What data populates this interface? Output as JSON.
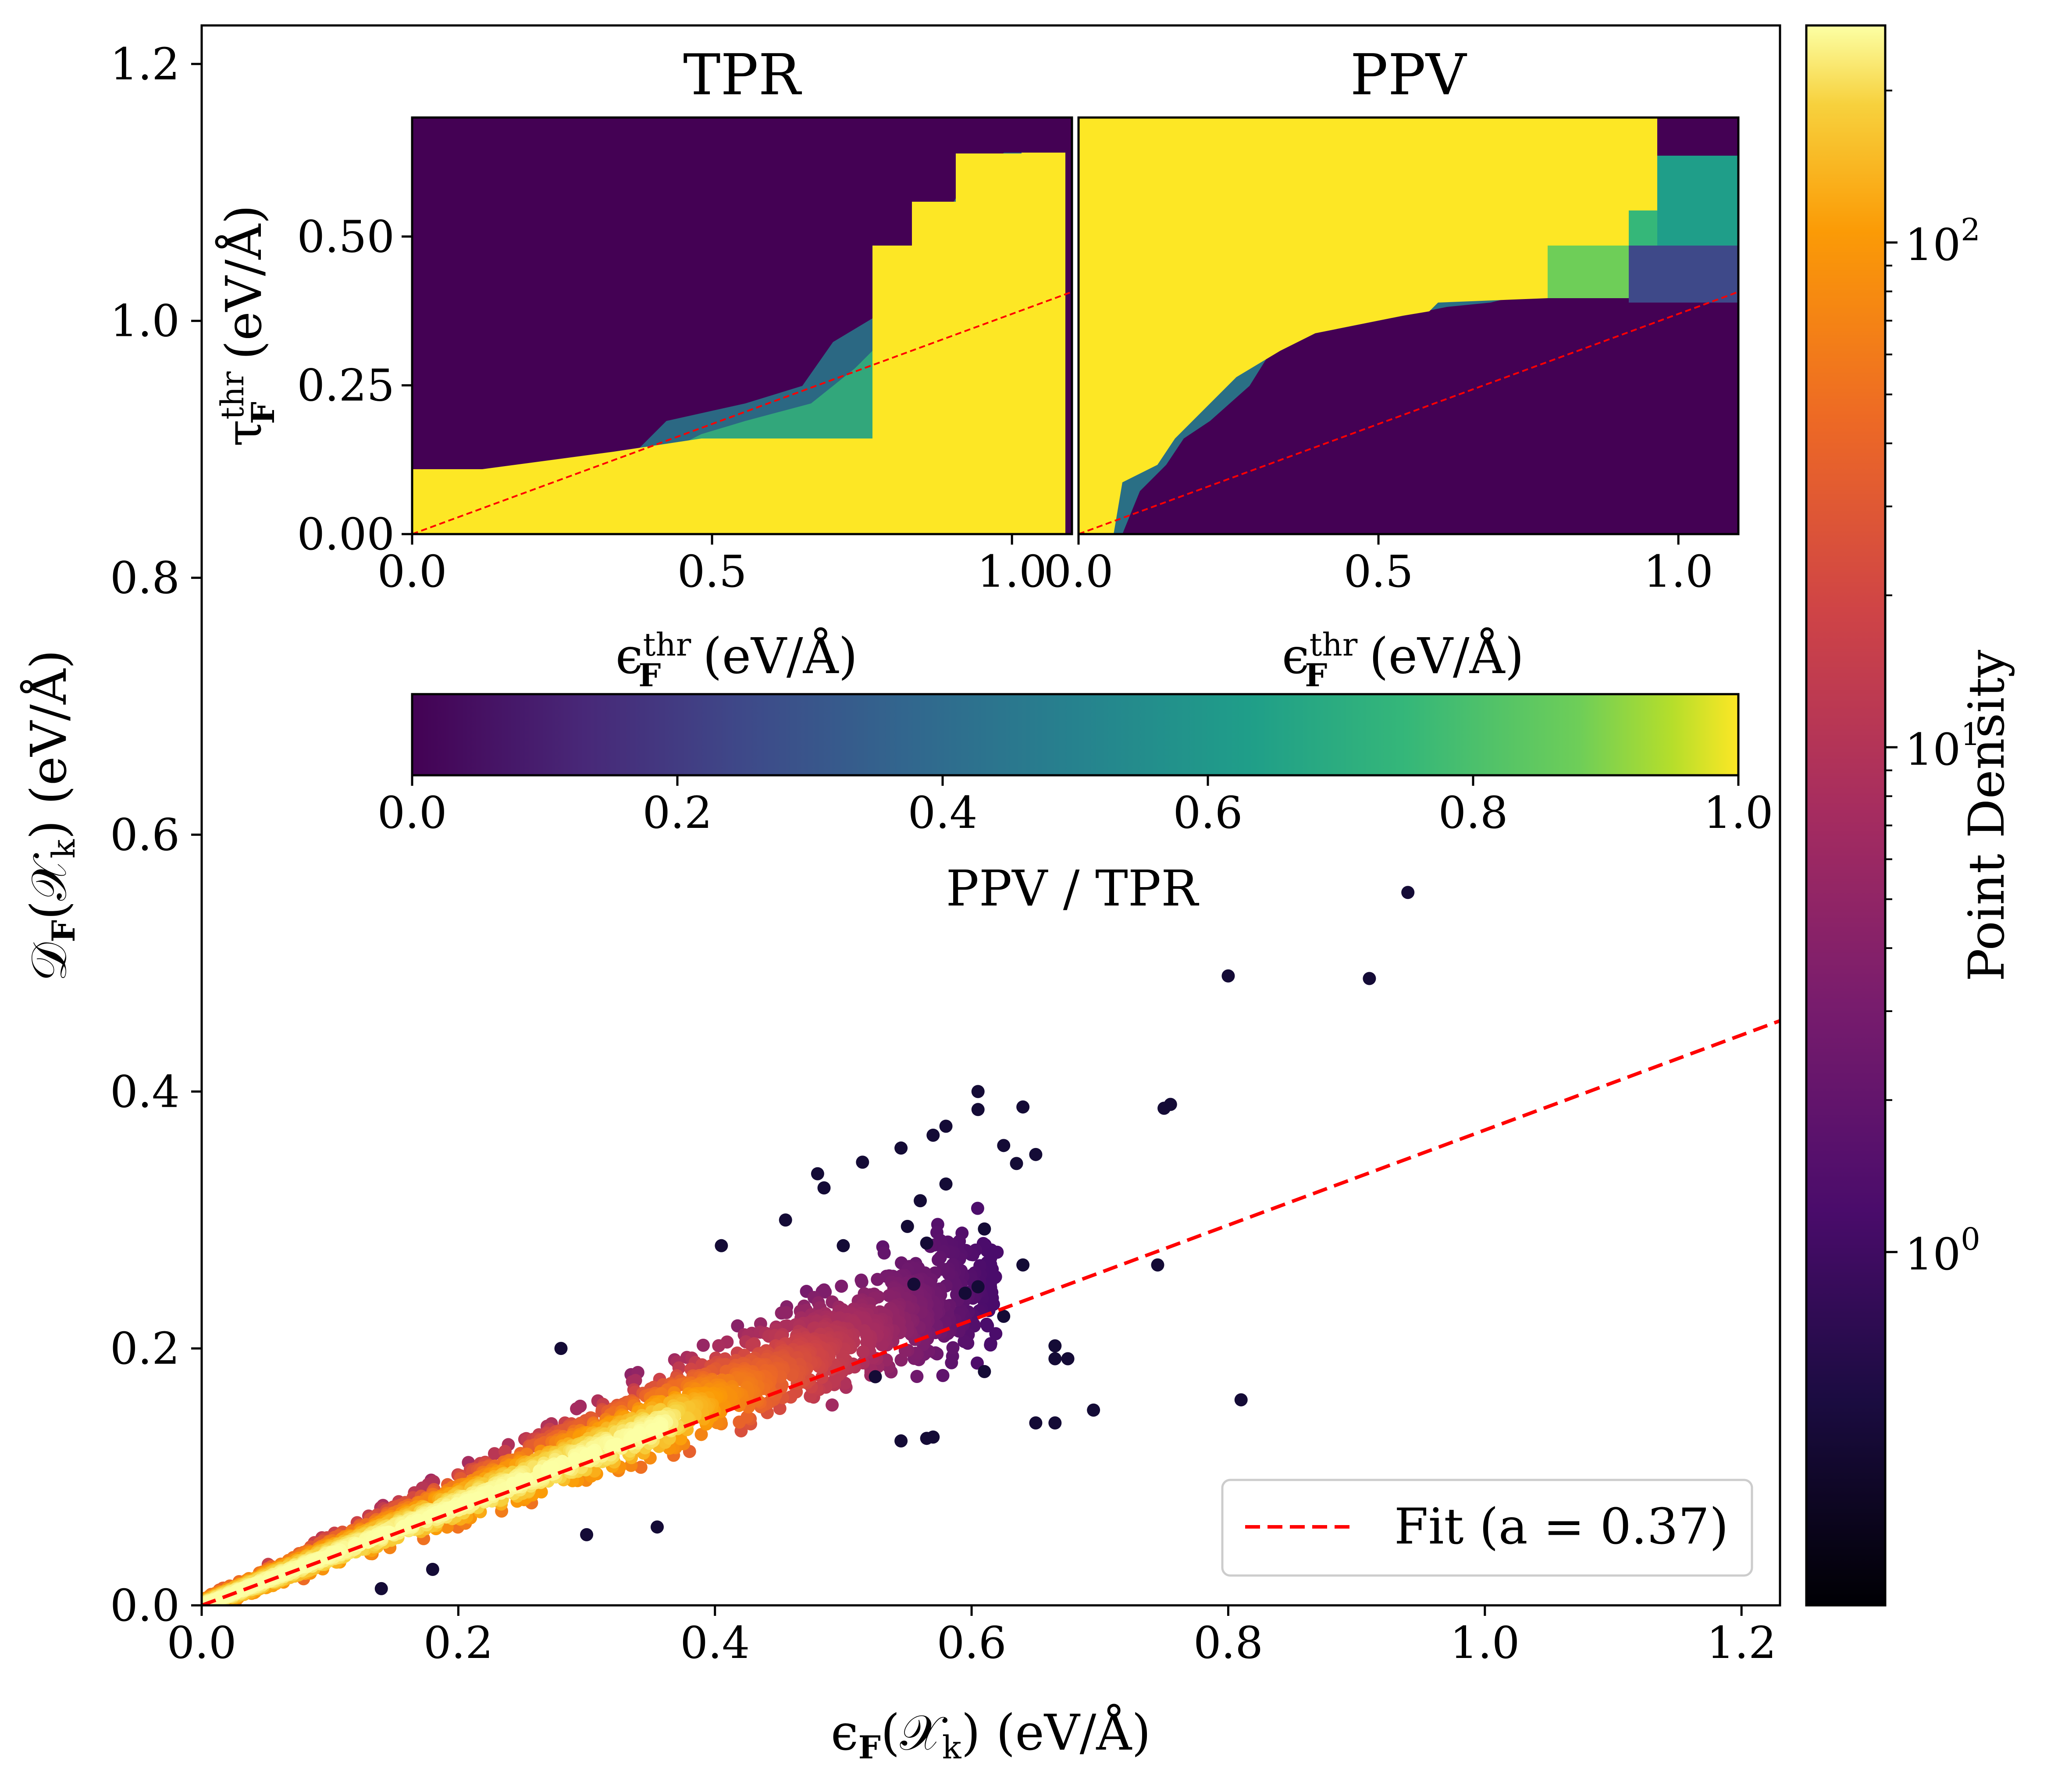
{
  "chart_data": [
    {
      "id": "main",
      "type": "scatter",
      "xlabel": "ϵF(𝒳k) (eV/Å)",
      "ylabel": "𝒟F(𝒳k) (eV/Å)",
      "xlim": [
        0.0,
        1.23
      ],
      "ylim": [
        0.0,
        1.23
      ],
      "xticks": [
        "0.0",
        "0.2",
        "0.4",
        "0.6",
        "0.8",
        "1.0",
        "1.2"
      ],
      "yticks": [
        "0.0",
        "0.2",
        "0.4",
        "0.6",
        "0.8",
        "1.0",
        "1.2"
      ],
      "fit": {
        "slope": 0.37,
        "label": "Fit (a = 0.37)",
        "color": "#ff0000",
        "style": "dashed"
      },
      "legend_position": "lower-right",
      "points_description": "dense cluster along y≈0.37x for x in 0–0.37, sparse outliers up to x≈0.94, colored by point density",
      "outliers": [
        {
          "x": 0.94,
          "y": 0.555
        },
        {
          "x": 0.8,
          "y": 0.49
        },
        {
          "x": 0.91,
          "y": 0.488
        },
        {
          "x": 0.605,
          "y": 0.4
        },
        {
          "x": 0.64,
          "y": 0.388
        },
        {
          "x": 0.605,
          "y": 0.386
        },
        {
          "x": 0.755,
          "y": 0.39
        },
        {
          "x": 0.75,
          "y": 0.387
        },
        {
          "x": 0.58,
          "y": 0.373
        },
        {
          "x": 0.57,
          "y": 0.366
        },
        {
          "x": 0.515,
          "y": 0.345
        },
        {
          "x": 0.48,
          "y": 0.336
        },
        {
          "x": 0.625,
          "y": 0.358
        },
        {
          "x": 0.635,
          "y": 0.344
        },
        {
          "x": 0.65,
          "y": 0.351
        },
        {
          "x": 0.545,
          "y": 0.356
        },
        {
          "x": 0.485,
          "y": 0.325
        },
        {
          "x": 0.58,
          "y": 0.328
        },
        {
          "x": 0.56,
          "y": 0.315
        },
        {
          "x": 0.55,
          "y": 0.295
        },
        {
          "x": 0.455,
          "y": 0.3
        },
        {
          "x": 0.61,
          "y": 0.293
        },
        {
          "x": 0.565,
          "y": 0.282
        },
        {
          "x": 0.5,
          "y": 0.28
        },
        {
          "x": 0.405,
          "y": 0.28
        },
        {
          "x": 0.64,
          "y": 0.265
        },
        {
          "x": 0.745,
          "y": 0.265
        },
        {
          "x": 0.555,
          "y": 0.25
        },
        {
          "x": 0.605,
          "y": 0.248
        },
        {
          "x": 0.595,
          "y": 0.243
        },
        {
          "x": 0.625,
          "y": 0.225
        },
        {
          "x": 0.665,
          "y": 0.202
        },
        {
          "x": 0.665,
          "y": 0.192
        },
        {
          "x": 0.675,
          "y": 0.192
        },
        {
          "x": 0.61,
          "y": 0.182
        },
        {
          "x": 0.525,
          "y": 0.178
        },
        {
          "x": 0.695,
          "y": 0.152
        },
        {
          "x": 0.81,
          "y": 0.16
        },
        {
          "x": 0.65,
          "y": 0.142
        },
        {
          "x": 0.665,
          "y": 0.142
        },
        {
          "x": 0.545,
          "y": 0.128
        },
        {
          "x": 0.565,
          "y": 0.13
        },
        {
          "x": 0.57,
          "y": 0.131
        },
        {
          "x": 0.28,
          "y": 0.2
        },
        {
          "x": 0.3,
          "y": 0.055
        },
        {
          "x": 0.355,
          "y": 0.061
        },
        {
          "x": 0.14,
          "y": 0.013
        },
        {
          "x": 0.18,
          "y": 0.028
        }
      ]
    },
    {
      "id": "inset-tpr",
      "type": "heatmap",
      "title": "TPR",
      "xlabel": "ϵFthr (eV/Å)",
      "ylabel": "τFthr (eV/Å)",
      "xlim": [
        0.0,
        1.1
      ],
      "ylim": [
        0.0,
        0.7
      ],
      "xticks": [
        "0.0",
        "0.5",
        "1.0"
      ],
      "yticks": [
        "0.00",
        "0.25",
        "0.50"
      ],
      "fit_slope": 0.37
    },
    {
      "id": "inset-ppv",
      "type": "heatmap",
      "title": "PPV",
      "xlabel": "ϵFthr (eV/Å)",
      "xlim": [
        0.0,
        1.1
      ],
      "ylim": [
        0.0,
        0.7
      ],
      "xticks": [
        "0.0",
        "0.5",
        "1.0"
      ],
      "fit_slope": 0.37
    },
    {
      "id": "viridis-colorbar",
      "type": "colorbar",
      "label": "PPV / TPR",
      "range": [
        0.0,
        1.0
      ],
      "ticks": [
        "0.0",
        "0.2",
        "0.4",
        "0.6",
        "0.8",
        "1.0"
      ],
      "colormap": "viridis"
    },
    {
      "id": "density-colorbar",
      "type": "colorbar",
      "label": "Point Density",
      "scale": "log",
      "ticks": [
        {
          "base": "10",
          "exp": "2"
        },
        {
          "base": "10",
          "exp": "1"
        },
        {
          "base": "10",
          "exp": "0"
        }
      ],
      "colormap": "inferno"
    }
  ],
  "labels": {
    "main_x_prefix": "ϵ",
    "main_x_sub": "F",
    "main_x_arg": "(𝒳",
    "main_x_argsub": "k",
    "main_x_unit": ")  (eV/Å)",
    "main_y_prefix": "𝒟",
    "main_y_sub": "F",
    "main_y_arg": "(𝒳",
    "main_y_argsub": "k",
    "main_y_unit": ")  (eV/Å)",
    "inset_x_prefix": "ϵ",
    "inset_x_sup": "thr",
    "inset_x_sub": "F",
    "inset_x_unit": "  (eV/Å)",
    "inset_y_prefix": "τ",
    "inset_y_sup": "thr",
    "inset_y_sub": "F",
    "inset_y_unit": "  (eV/Å)"
  }
}
